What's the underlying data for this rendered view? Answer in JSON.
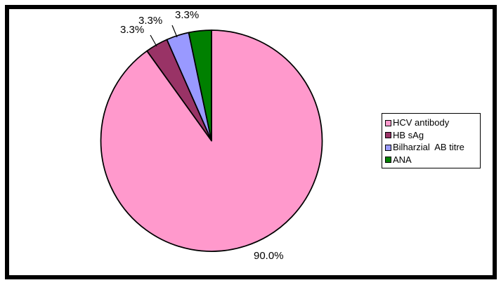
{
  "chart_data": {
    "type": "pie",
    "title": "",
    "categories": [
      "HCV antibody",
      "HB sAg",
      "Bilharzial  AB titre",
      "ANA"
    ],
    "values": [
      90.0,
      3.3,
      3.3,
      3.3
    ],
    "slice_labels": [
      "90.0%",
      "3.3%",
      "3.3%",
      "3.3%"
    ],
    "colors": [
      "#FF99CC",
      "#993366",
      "#9999FF",
      "#008000"
    ],
    "outline_color": "#000000",
    "background_color": "#FFFFFF",
    "frame_color": "#000000",
    "start_at": "top",
    "direction": "clockwise",
    "legend_position": "right",
    "grid": false
  },
  "legend": {
    "items": [
      {
        "label": "HCV antibody",
        "color": "#FF99CC"
      },
      {
        "label": "HB sAg",
        "color": "#993366"
      },
      {
        "label": "Bilharzial  AB titre",
        "color": "#9999FF"
      },
      {
        "label": "ANA",
        "color": "#008000"
      }
    ]
  }
}
